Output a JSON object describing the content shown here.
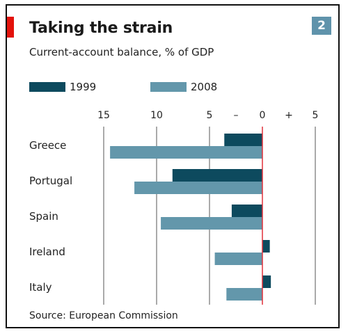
{
  "header": {
    "title": "Taking the strain",
    "subtitle": "Current-account balance, % of GDP",
    "badge": "2"
  },
  "footer": {
    "source": "Source: European Commission"
  },
  "colors": {
    "series_1999": "#0d4a5e",
    "series_2008": "#6397ab",
    "zero_line": "#e0303a",
    "grid": "#555555",
    "accent": "#e3120b"
  },
  "chart_data": {
    "type": "bar",
    "orientation": "horizontal",
    "categories": [
      "Greece",
      "Portugal",
      "Spain",
      "Ireland",
      "Italy"
    ],
    "series": [
      {
        "name": "1999",
        "values": [
          -3.6,
          -8.5,
          -2.9,
          0.7,
          0.8
        ]
      },
      {
        "name": "2008",
        "values": [
          -14.4,
          -12.1,
          -9.6,
          -4.5,
          -3.4
        ]
      }
    ],
    "x_ticks": [
      "15",
      "10",
      "5",
      "–",
      "0",
      "+",
      "5"
    ],
    "xlim": [
      -15,
      5
    ],
    "grid": true,
    "legend_position": "top-left"
  }
}
